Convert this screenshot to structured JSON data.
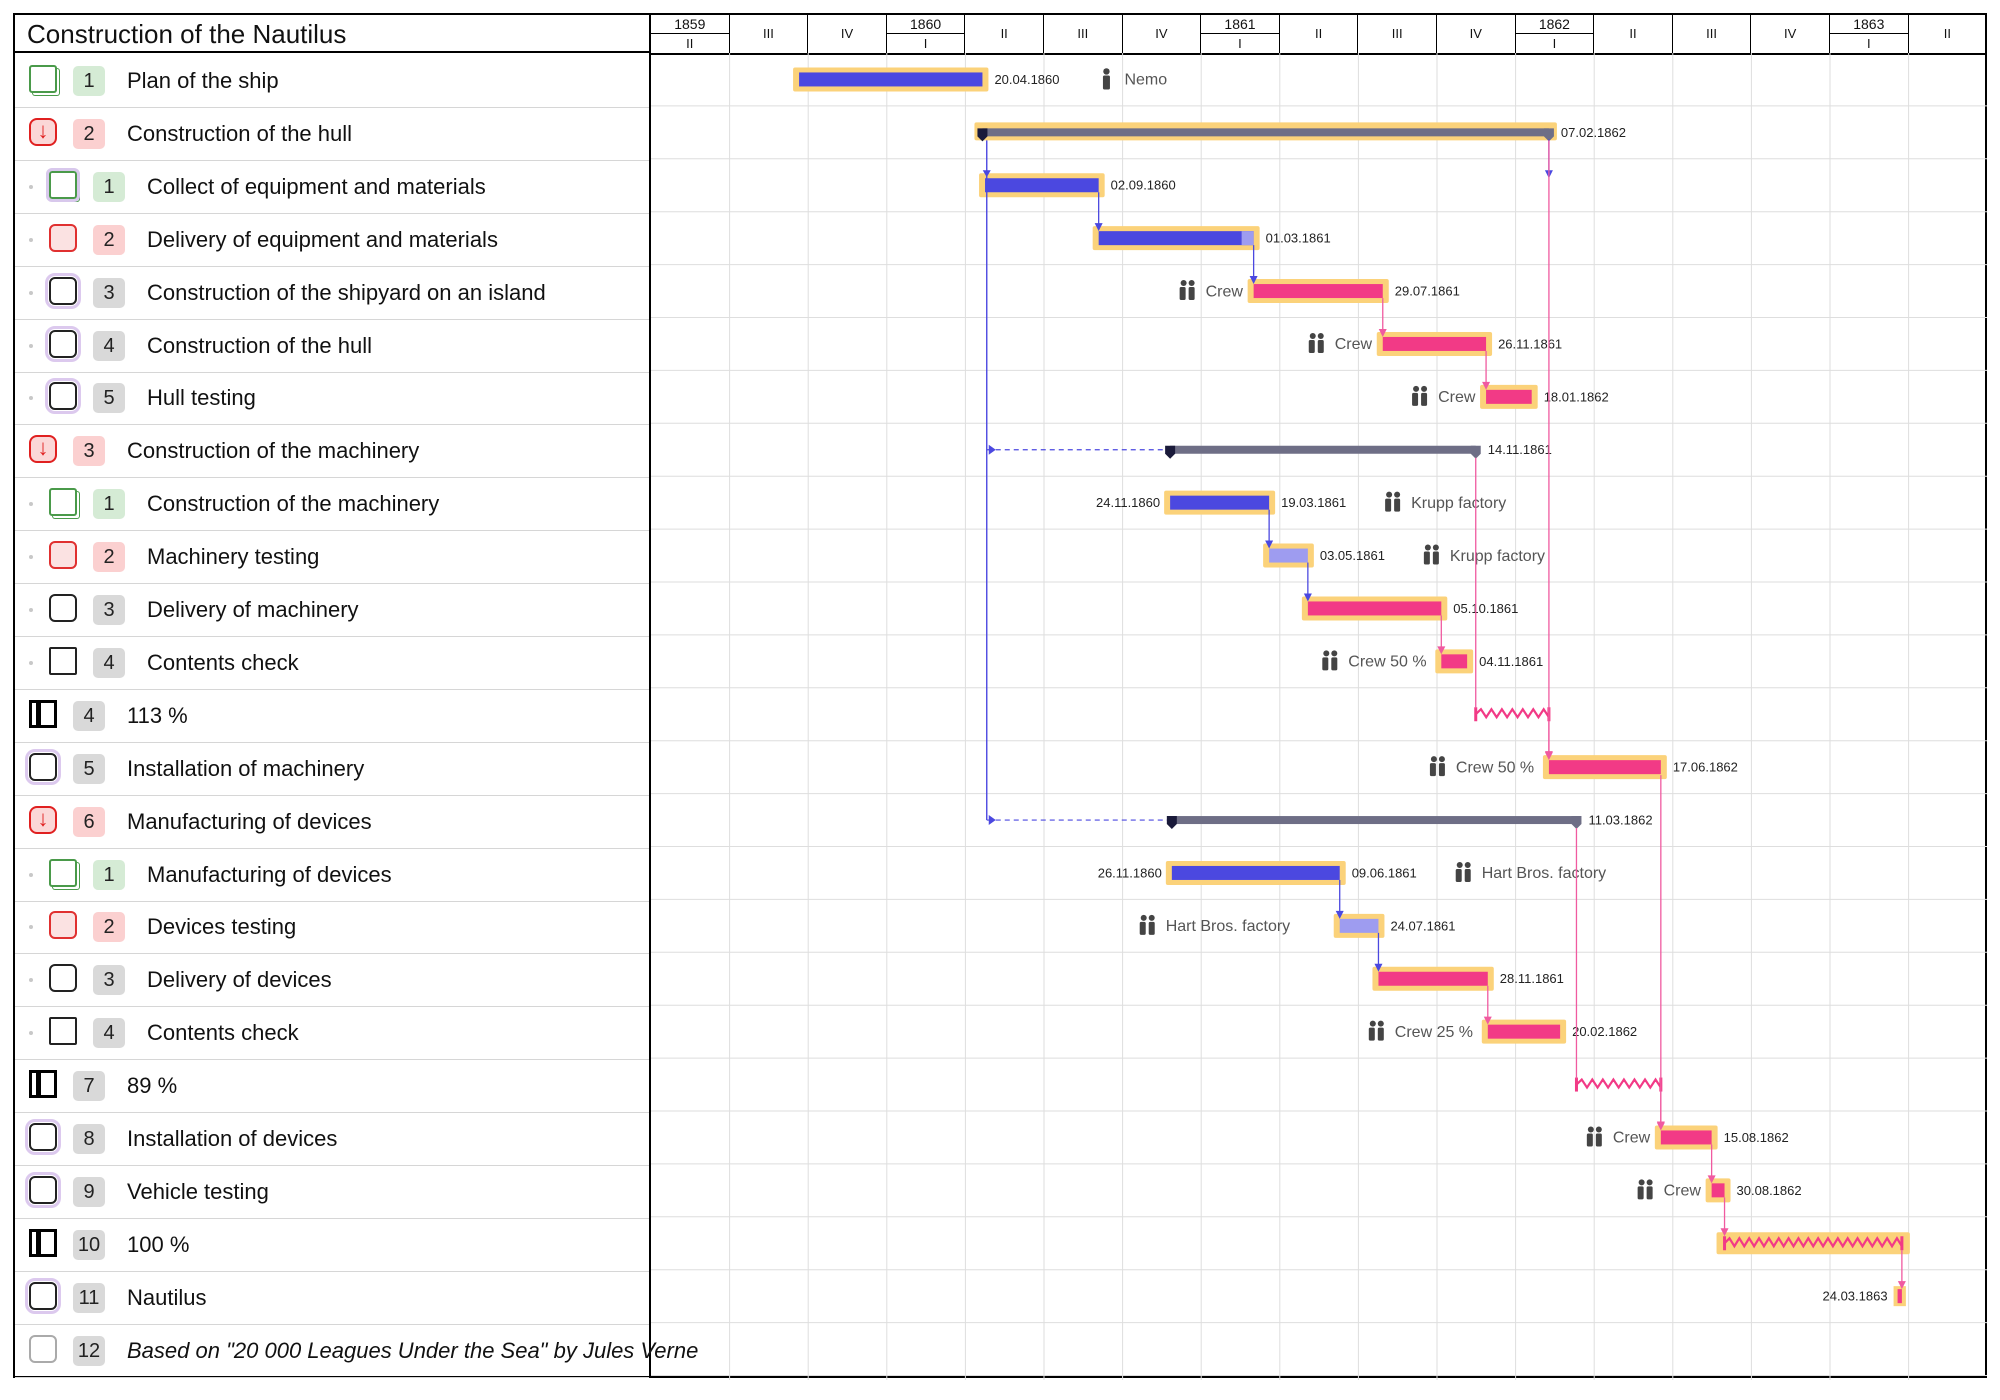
{
  "project": {
    "title": "Construction of the Nautilus"
  },
  "timeline": {
    "quarters": [
      {
        "year": "1859",
        "q": "II"
      },
      {
        "year": "",
        "q": "III"
      },
      {
        "year": "",
        "q": "IV"
      },
      {
        "year": "1860",
        "q": "I"
      },
      {
        "year": "",
        "q": "II"
      },
      {
        "year": "",
        "q": "III"
      },
      {
        "year": "",
        "q": "IV"
      },
      {
        "year": "1861",
        "q": "I"
      },
      {
        "year": "",
        "q": "II"
      },
      {
        "year": "",
        "q": "III"
      },
      {
        "year": "",
        "q": "IV"
      },
      {
        "year": "1862",
        "q": "I"
      },
      {
        "year": "",
        "q": "II"
      },
      {
        "year": "",
        "q": "III"
      },
      {
        "year": "",
        "q": "IV"
      },
      {
        "year": "1863",
        "q": "I"
      },
      {
        "year": "",
        "q": "II"
      }
    ]
  },
  "tasks": [
    {
      "num": "1",
      "label": "Plan of the ship",
      "level": 0,
      "icon": "green",
      "numColor": "g",
      "bar": {
        "type": "blue",
        "start": "1859-09-20",
        "end": "1860-04-20",
        "endLabel": "20.04.1860",
        "res": "Nemo",
        "resIcon": "person"
      }
    },
    {
      "num": "2",
      "label": "Construction of the hull",
      "level": 0,
      "icon": "redarrow",
      "numColor": "r",
      "bar": {
        "type": "summary",
        "start": "1860-04-20",
        "end": "1862-02-07",
        "endLabel": "07.02.1862",
        "halo": true
      }
    },
    {
      "num": "1",
      "label": "Collect of equipment and materials",
      "level": 1,
      "icon": "green-halo",
      "numColor": "g",
      "bar": {
        "type": "blue",
        "start": "1860-04-23",
        "end": "1860-09-02",
        "endLabel": "02.09.1860"
      }
    },
    {
      "num": "2",
      "label": "Delivery of equipment and materials",
      "level": 1,
      "icon": "red",
      "numColor": "r",
      "bar": {
        "type": "blue",
        "start": "1860-09-02",
        "end": "1861-03-01",
        "endLabel": "01.03.1861",
        "lightTail": true
      }
    },
    {
      "num": "3",
      "label": "Construction of the shipyard on an island",
      "level": 1,
      "icon": "black-halo",
      "numColor": "n",
      "bar": {
        "type": "pink",
        "start": "1861-03-01",
        "end": "1861-07-29",
        "endLabel": "29.07.1861",
        "res": "Crew",
        "resIcon": "group",
        "resSide": "left"
      }
    },
    {
      "num": "4",
      "label": "Construction of the hull",
      "level": 1,
      "icon": "black-halo",
      "numColor": "n",
      "bar": {
        "type": "pink",
        "start": "1861-07-29",
        "end": "1861-11-26",
        "endLabel": "26.11.1861",
        "res": "Crew",
        "resIcon": "group",
        "resSide": "left"
      }
    },
    {
      "num": "5",
      "label": "Hull testing",
      "level": 1,
      "icon": "black-halo",
      "numColor": "n",
      "bar": {
        "type": "pink",
        "start": "1861-11-26",
        "end": "1862-01-18",
        "endLabel": "18.01.1862",
        "res": "Crew",
        "resIcon": "group",
        "resSide": "left"
      }
    },
    {
      "num": "3",
      "label": "Construction of the machinery",
      "level": 0,
      "icon": "redarrow",
      "numColor": "r",
      "bar": {
        "type": "summary",
        "start": "1860-11-24",
        "end": "1861-11-14",
        "endLabel": "14.11.1861",
        "dashFrom": "1860-04-25"
      }
    },
    {
      "num": "1",
      "label": "Construction of the machinery",
      "level": 1,
      "icon": "green",
      "numColor": "g",
      "bar": {
        "type": "blue",
        "start": "1860-11-24",
        "end": "1861-03-19",
        "startLabel": "24.11.1860",
        "endLabel": "19.03.1861",
        "res": "Krupp factory",
        "resIcon": "group"
      }
    },
    {
      "num": "2",
      "label": "Machinery testing",
      "level": 1,
      "icon": "red",
      "numColor": "r",
      "bar": {
        "type": "lightblue",
        "start": "1861-03-19",
        "end": "1861-05-03",
        "endLabel": "03.05.1861",
        "res": "Krupp factory",
        "resIcon": "group"
      }
    },
    {
      "num": "3",
      "label": "Delivery of machinery",
      "level": 1,
      "icon": "black",
      "numColor": "n",
      "bar": {
        "type": "pink",
        "start": "1861-05-03",
        "end": "1861-10-05",
        "endLabel": "05.10.1861"
      }
    },
    {
      "num": "4",
      "label": "Contents check",
      "level": 1,
      "icon": "square",
      "numColor": "n",
      "bar": {
        "type": "pink",
        "start": "1861-10-05",
        "end": "1861-11-04",
        "endLabel": "04.11.1861",
        "res": "Crew 50 %",
        "resIcon": "group",
        "resSide": "left"
      }
    },
    {
      "num": "4",
      "label": "113 %",
      "level": 0,
      "icon": "bar",
      "numColor": "n",
      "bar": {
        "type": "zigzag",
        "start": "1861-11-14",
        "end": "1862-02-07"
      }
    },
    {
      "num": "5",
      "label": "Installation of machinery",
      "level": 0,
      "icon": "black-halo",
      "numColor": "n",
      "bar": {
        "type": "pink",
        "start": "1862-02-07",
        "end": "1862-06-17",
        "endLabel": "17.06.1862",
        "res": "Crew 50 %",
        "resIcon": "group",
        "resSide": "left"
      }
    },
    {
      "num": "6",
      "label": "Manufacturing of devices",
      "level": 0,
      "icon": "redarrow",
      "numColor": "r",
      "bar": {
        "type": "summary",
        "start": "1860-11-26",
        "end": "1862-03-11",
        "endLabel": "11.03.1862",
        "dashFrom": "1860-04-25"
      }
    },
    {
      "num": "1",
      "label": "Manufacturing of devices",
      "level": 1,
      "icon": "green",
      "numColor": "g",
      "bar": {
        "type": "blue",
        "start": "1860-11-26",
        "end": "1861-06-09",
        "startLabel": "26.11.1860",
        "endLabel": "09.06.1861",
        "res": "Hart Bros. factory",
        "resIcon": "group"
      }
    },
    {
      "num": "2",
      "label": "Devices testing",
      "level": 1,
      "icon": "red",
      "numColor": "r",
      "bar": {
        "type": "lightblue",
        "start": "1861-06-09",
        "end": "1861-07-24",
        "endLabel": "24.07.1861",
        "res": "Hart Bros. factory",
        "resIcon": "group",
        "resSide": "left"
      }
    },
    {
      "num": "3",
      "label": "Delivery of devices",
      "level": 1,
      "icon": "black",
      "numColor": "n",
      "bar": {
        "type": "pink",
        "start": "1861-07-24",
        "end": "1861-11-28",
        "endLabel": "28.11.1861"
      }
    },
    {
      "num": "4",
      "label": "Contents check",
      "level": 1,
      "icon": "square",
      "numColor": "n",
      "bar": {
        "type": "pink",
        "start": "1861-11-28",
        "end": "1862-02-20",
        "endLabel": "20.02.1862",
        "res": "Crew 25 %",
        "resIcon": "group",
        "resSide": "left"
      }
    },
    {
      "num": "7",
      "label": "89 %",
      "level": 0,
      "icon": "bar",
      "numColor": "n",
      "bar": {
        "type": "zigzag",
        "start": "1862-03-11",
        "end": "1862-06-17"
      }
    },
    {
      "num": "8",
      "label": "Installation of devices",
      "level": 0,
      "icon": "black-halo",
      "numColor": "n",
      "bar": {
        "type": "pink",
        "start": "1862-06-17",
        "end": "1862-08-15",
        "endLabel": "15.08.1862",
        "res": "Crew",
        "resIcon": "group",
        "resSide": "left"
      }
    },
    {
      "num": "9",
      "label": "Vehicle testing",
      "level": 0,
      "icon": "black-halo",
      "numColor": "n",
      "bar": {
        "type": "pink",
        "start": "1862-08-15",
        "end": "1862-08-30",
        "endLabel": "30.08.1862",
        "res": "Crew",
        "resIcon": "group",
        "resSide": "left"
      }
    },
    {
      "num": "10",
      "label": "100 %",
      "level": 0,
      "icon": "bar",
      "numColor": "n",
      "bar": {
        "type": "zigzag",
        "start": "1862-08-30",
        "end": "1863-03-24",
        "halo": true
      }
    },
    {
      "num": "11",
      "label": "Nautilus",
      "level": 0,
      "icon": "black-halo",
      "numColor": "n",
      "bar": {
        "type": "milestone",
        "start": "1863-03-19",
        "end": "1863-03-24",
        "startLabel": "24.03.1863"
      }
    },
    {
      "num": "12",
      "label": "Based on \"20 000 Leagues Under the Sea\" by Jules Verne",
      "level": 0,
      "icon": "empty",
      "numColor": "n",
      "italic": true
    }
  ],
  "links": [
    {
      "from": 1,
      "to": 2,
      "kind": "down"
    },
    {
      "from": 2,
      "to": 3,
      "kind": "down"
    },
    {
      "from": 3,
      "to": 4,
      "kind": "down"
    },
    {
      "from": 4,
      "to": 5,
      "kind": "down"
    },
    {
      "from": 5,
      "to": 6,
      "kind": "down"
    },
    {
      "from": 8,
      "to": 9,
      "kind": "down"
    },
    {
      "from": 9,
      "to": 10,
      "kind": "down"
    },
    {
      "from": 10,
      "to": 11,
      "kind": "down"
    },
    {
      "from": 15,
      "to": 16,
      "kind": "down"
    },
    {
      "from": 16,
      "to": 17,
      "kind": "down"
    },
    {
      "from": 17,
      "to": 18,
      "kind": "down"
    },
    {
      "from": 12,
      "to": 13,
      "kind": "down"
    },
    {
      "from": 19,
      "to": 20,
      "kind": "down"
    },
    {
      "from": 20,
      "to": 21,
      "kind": "down"
    },
    {
      "from": 21,
      "to": 22,
      "kind": "down"
    },
    {
      "from": 22,
      "to": 23,
      "kind": "down"
    }
  ],
  "colors": {
    "blue": "#4b48e0",
    "lightblue": "#9e9cf0",
    "pink": "#f23a86",
    "halo": "#fbd27a",
    "summary": "#6e6e86",
    "grid": "#dedede",
    "blueline": "#4b48e0",
    "pinkline": "#f05aa0"
  }
}
